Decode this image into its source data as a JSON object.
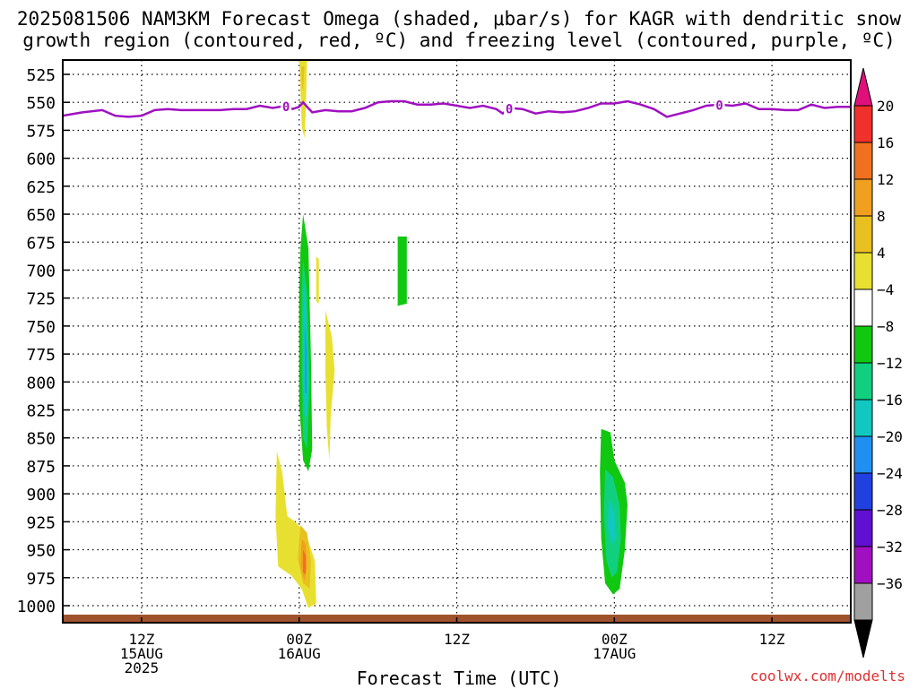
{
  "title_line1": "2025081506 NAM3KM Forecast Omega (shaded, μbar/s) for KAGR with dendritic snow",
  "title_line2": "growth region (contoured, red, ºC) and freezing level (contoured, purple, ºC)",
  "credit": "coolwx.com/modelts",
  "chart_data": {
    "type": "heatmap",
    "xlabel": "Forecast Time (UTC)",
    "ylabel": "",
    "x_ticks": [
      {
        "hour": 6,
        "label1": "12Z",
        "label2": "15AUG",
        "label3": "2025"
      },
      {
        "hour": 18,
        "label1": "00Z",
        "label2": "16AUG",
        "label3": ""
      },
      {
        "hour": 30,
        "label1": "12Z",
        "label2": "",
        "label3": ""
      },
      {
        "hour": 42,
        "label1": "00Z",
        "label2": "17AUG",
        "label3": ""
      },
      {
        "hour": 54,
        "label1": "12Z",
        "label2": "",
        "label3": ""
      }
    ],
    "x_range_hours": [
      0,
      60
    ],
    "y_ticks": [
      525,
      550,
      575,
      600,
      625,
      650,
      675,
      700,
      725,
      750,
      775,
      800,
      825,
      850,
      875,
      900,
      925,
      950,
      975,
      1000
    ],
    "y_range_hpa": [
      510,
      1010
    ],
    "grid": true,
    "colorbar": {
      "labels": [
        "20",
        "16",
        "12",
        "8",
        "4",
        "−4",
        "−8",
        "−12",
        "−16",
        "−20",
        "−24",
        "−28",
        "−32",
        "−36"
      ],
      "colors": [
        "#e0107a",
        "#f0302a",
        "#f07020",
        "#f0a020",
        "#e8c020",
        "#e8e030",
        "#ffffff",
        "#10c810",
        "#10d080",
        "#10c8c0",
        "#2090f0",
        "#2040e0",
        "#6010d0",
        "#a010c0",
        "#a0a0a0",
        "#000000"
      ]
    },
    "omega_regions": [
      {
        "color": "#e8e030",
        "points": [
          [
            18.0,
            512
          ],
          [
            18.6,
            512
          ],
          [
            18.5,
            560
          ],
          [
            18.4,
            582
          ],
          [
            18.2,
            572
          ],
          [
            18.1,
            540
          ]
        ]
      },
      {
        "color": "#e8c020",
        "points": [
          [
            18.15,
            518
          ],
          [
            18.4,
            518
          ],
          [
            18.3,
            540
          ],
          [
            18.2,
            535
          ]
        ]
      },
      {
        "color": "#e8e030",
        "points": [
          [
            19.3,
            688
          ],
          [
            19.5,
            690
          ],
          [
            19.5,
            730
          ],
          [
            19.3,
            728
          ]
        ]
      },
      {
        "color": "#e8e030",
        "points": [
          [
            20.0,
            736
          ],
          [
            20.5,
            760
          ],
          [
            20.7,
            790
          ],
          [
            20.4,
            830
          ],
          [
            20.3,
            870
          ],
          [
            20.1,
            840
          ],
          [
            20.0,
            790
          ]
        ]
      },
      {
        "color": "#10c810",
        "points": [
          [
            18.3,
            650
          ],
          [
            18.7,
            680
          ],
          [
            18.9,
            780
          ],
          [
            19.0,
            860
          ],
          [
            18.7,
            880
          ],
          [
            18.3,
            870
          ],
          [
            18.0,
            820
          ],
          [
            18.0,
            720
          ],
          [
            18.1,
            680
          ]
        ]
      },
      {
        "color": "#10d080",
        "points": [
          [
            18.3,
            690
          ],
          [
            18.6,
            720
          ],
          [
            18.8,
            800
          ],
          [
            18.6,
            860
          ],
          [
            18.3,
            850
          ],
          [
            18.2,
            780
          ],
          [
            18.2,
            720
          ]
        ]
      },
      {
        "color": "#10c8c0",
        "points": [
          [
            18.4,
            710
          ],
          [
            18.6,
            760
          ],
          [
            18.6,
            830
          ],
          [
            18.4,
            830
          ],
          [
            18.3,
            780
          ]
        ]
      },
      {
        "color": "#2090f0",
        "points": [
          [
            18.45,
            745
          ],
          [
            18.55,
            770
          ],
          [
            18.55,
            810
          ],
          [
            18.45,
            810
          ]
        ]
      },
      {
        "color": "#10c810",
        "points": [
          [
            25.5,
            670
          ],
          [
            26.2,
            670
          ],
          [
            26.2,
            730
          ],
          [
            25.5,
            732
          ]
        ]
      },
      {
        "color": "#e8e030",
        "points": [
          [
            16.3,
            862
          ],
          [
            16.7,
            880
          ],
          [
            17.1,
            920
          ],
          [
            17.7,
            925
          ],
          [
            18.5,
            935
          ],
          [
            19.2,
            960
          ],
          [
            19.3,
            998
          ],
          [
            18.7,
            1002
          ],
          [
            18.2,
            985
          ],
          [
            17.4,
            973
          ],
          [
            16.4,
            965
          ],
          [
            16.2,
            920
          ]
        ]
      },
      {
        "color": "#e8c020",
        "points": [
          [
            18.1,
            928
          ],
          [
            18.6,
            935
          ],
          [
            18.9,
            960
          ],
          [
            18.8,
            985
          ],
          [
            18.3,
            980
          ],
          [
            17.9,
            958
          ]
        ]
      },
      {
        "color": "#f0a020",
        "points": [
          [
            18.2,
            940
          ],
          [
            18.5,
            945
          ],
          [
            18.6,
            965
          ],
          [
            18.4,
            978
          ],
          [
            18.1,
            965
          ]
        ]
      },
      {
        "color": "#f07020",
        "points": [
          [
            18.3,
            950
          ],
          [
            18.5,
            955
          ],
          [
            18.5,
            972
          ],
          [
            18.3,
            970
          ]
        ]
      },
      {
        "color": "#10c810",
        "points": [
          [
            41.0,
            842
          ],
          [
            41.7,
            845
          ],
          [
            42.0,
            870
          ],
          [
            42.8,
            890
          ],
          [
            43.0,
            910
          ],
          [
            42.8,
            950
          ],
          [
            42.4,
            985
          ],
          [
            41.9,
            990
          ],
          [
            41.3,
            980
          ],
          [
            41.0,
            940
          ],
          [
            40.9,
            880
          ]
        ]
      },
      {
        "color": "#10d080",
        "points": [
          [
            41.3,
            878
          ],
          [
            41.9,
            885
          ],
          [
            42.4,
            910
          ],
          [
            42.5,
            940
          ],
          [
            42.2,
            970
          ],
          [
            41.8,
            975
          ],
          [
            41.4,
            960
          ],
          [
            41.2,
            920
          ]
        ]
      },
      {
        "color": "#10c8c0",
        "points": [
          [
            41.6,
            905
          ],
          [
            42.0,
            915
          ],
          [
            42.1,
            940
          ],
          [
            41.8,
            945
          ],
          [
            41.5,
            930
          ]
        ]
      }
    ],
    "freezing_level": {
      "color": "#a010c0",
      "label": "0",
      "hours": [
        0,
        1.5,
        3,
        4,
        5,
        6,
        7,
        8,
        9,
        10,
        11,
        12,
        13,
        14,
        15,
        16,
        17,
        17.5,
        18,
        18.3,
        18.6,
        19,
        20,
        21,
        22,
        23,
        24,
        25,
        26,
        27,
        28,
        29,
        30,
        31,
        32,
        33,
        33.5,
        34,
        35,
        36,
        37,
        38,
        39,
        40,
        41,
        42,
        43,
        44,
        45,
        46,
        47,
        48,
        49,
        50,
        51,
        52,
        53,
        54,
        55,
        56,
        57,
        58,
        59,
        60
      ],
      "pressure_hpa": [
        562,
        559,
        557,
        562,
        563,
        562,
        557,
        556,
        557,
        557,
        557,
        557,
        556,
        556,
        553,
        555,
        553,
        556,
        554,
        550,
        554,
        559,
        557,
        558,
        558,
        555,
        550,
        549,
        549,
        552,
        552,
        551,
        553,
        555,
        553,
        556,
        560,
        555,
        556,
        560,
        558,
        559,
        558,
        555,
        551,
        551,
        549,
        552,
        556,
        563,
        560,
        557,
        553,
        552,
        553,
        551,
        556,
        556,
        557,
        557,
        552,
        555,
        554,
        554
      ],
      "label_hours": [
        17,
        34,
        50
      ]
    },
    "ground_level_hpa": 1009
  }
}
